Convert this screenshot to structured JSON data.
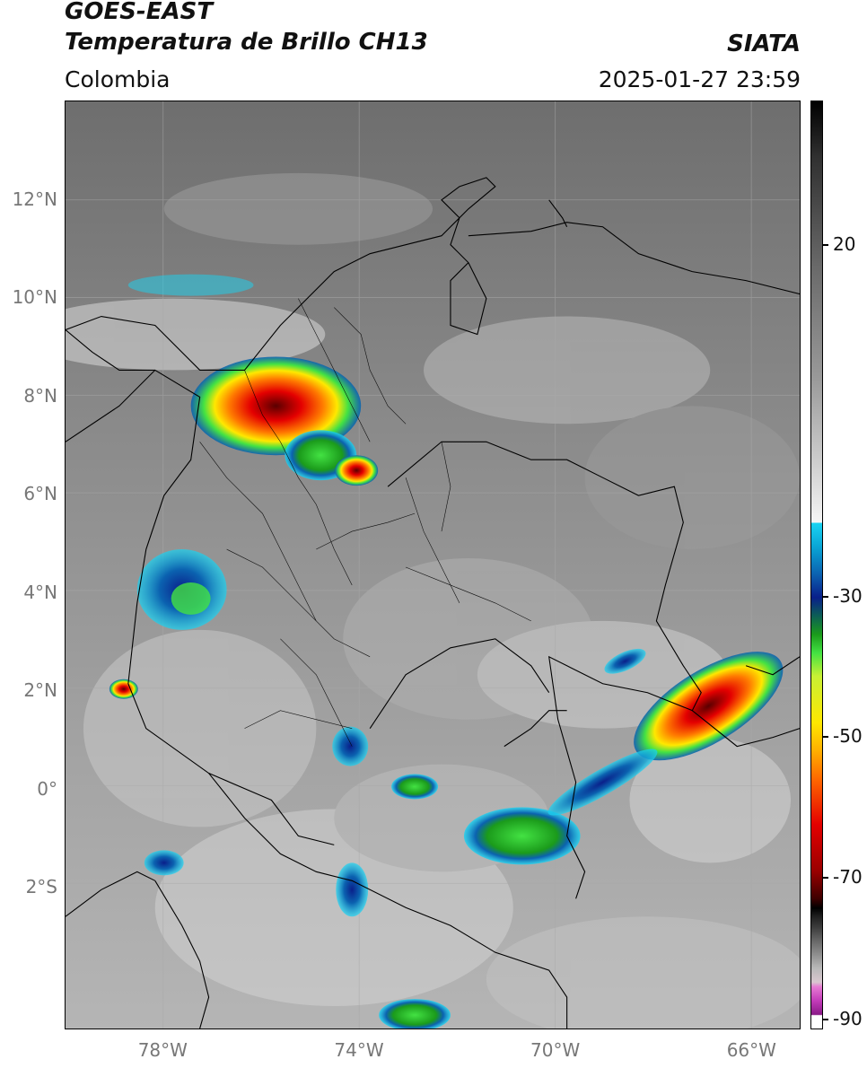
{
  "header": {
    "satellite": "GOES-EAST",
    "product": "Temperatura de Brillo CH13",
    "region": "Colombia",
    "brand": "SIATA",
    "timestamp": "2025-01-27 23:59"
  },
  "map": {
    "lat_labels": [
      "12°N",
      "10°N",
      "8°N",
      "6°N",
      "4°N",
      "2°N",
      "0°",
      "2°S"
    ],
    "lat_values": [
      12,
      10,
      8,
      6,
      4,
      2,
      0,
      -2
    ],
    "lon_labels": [
      "78°W",
      "74°W",
      "70°W",
      "66°W"
    ],
    "lon_values": [
      -78,
      -74,
      -70,
      -66
    ],
    "extent": {
      "lon_min": -80,
      "lon_max": -65,
      "lat_min": -4.9,
      "lat_max": 14
    }
  },
  "colorbar": {
    "tick_labels": [
      "20",
      "-30",
      "-50",
      "-70",
      "-90"
    ],
    "tick_values": [
      20,
      -30,
      -50,
      -70,
      -90
    ],
    "units": "",
    "colors": {
      "cloud_cold": "#19d3f2",
      "deep_blue": "#0a1f8a",
      "green": "#43e243",
      "yellow": "#ffe800",
      "red": "#e40000",
      "magenta": "#c33cb9"
    }
  }
}
